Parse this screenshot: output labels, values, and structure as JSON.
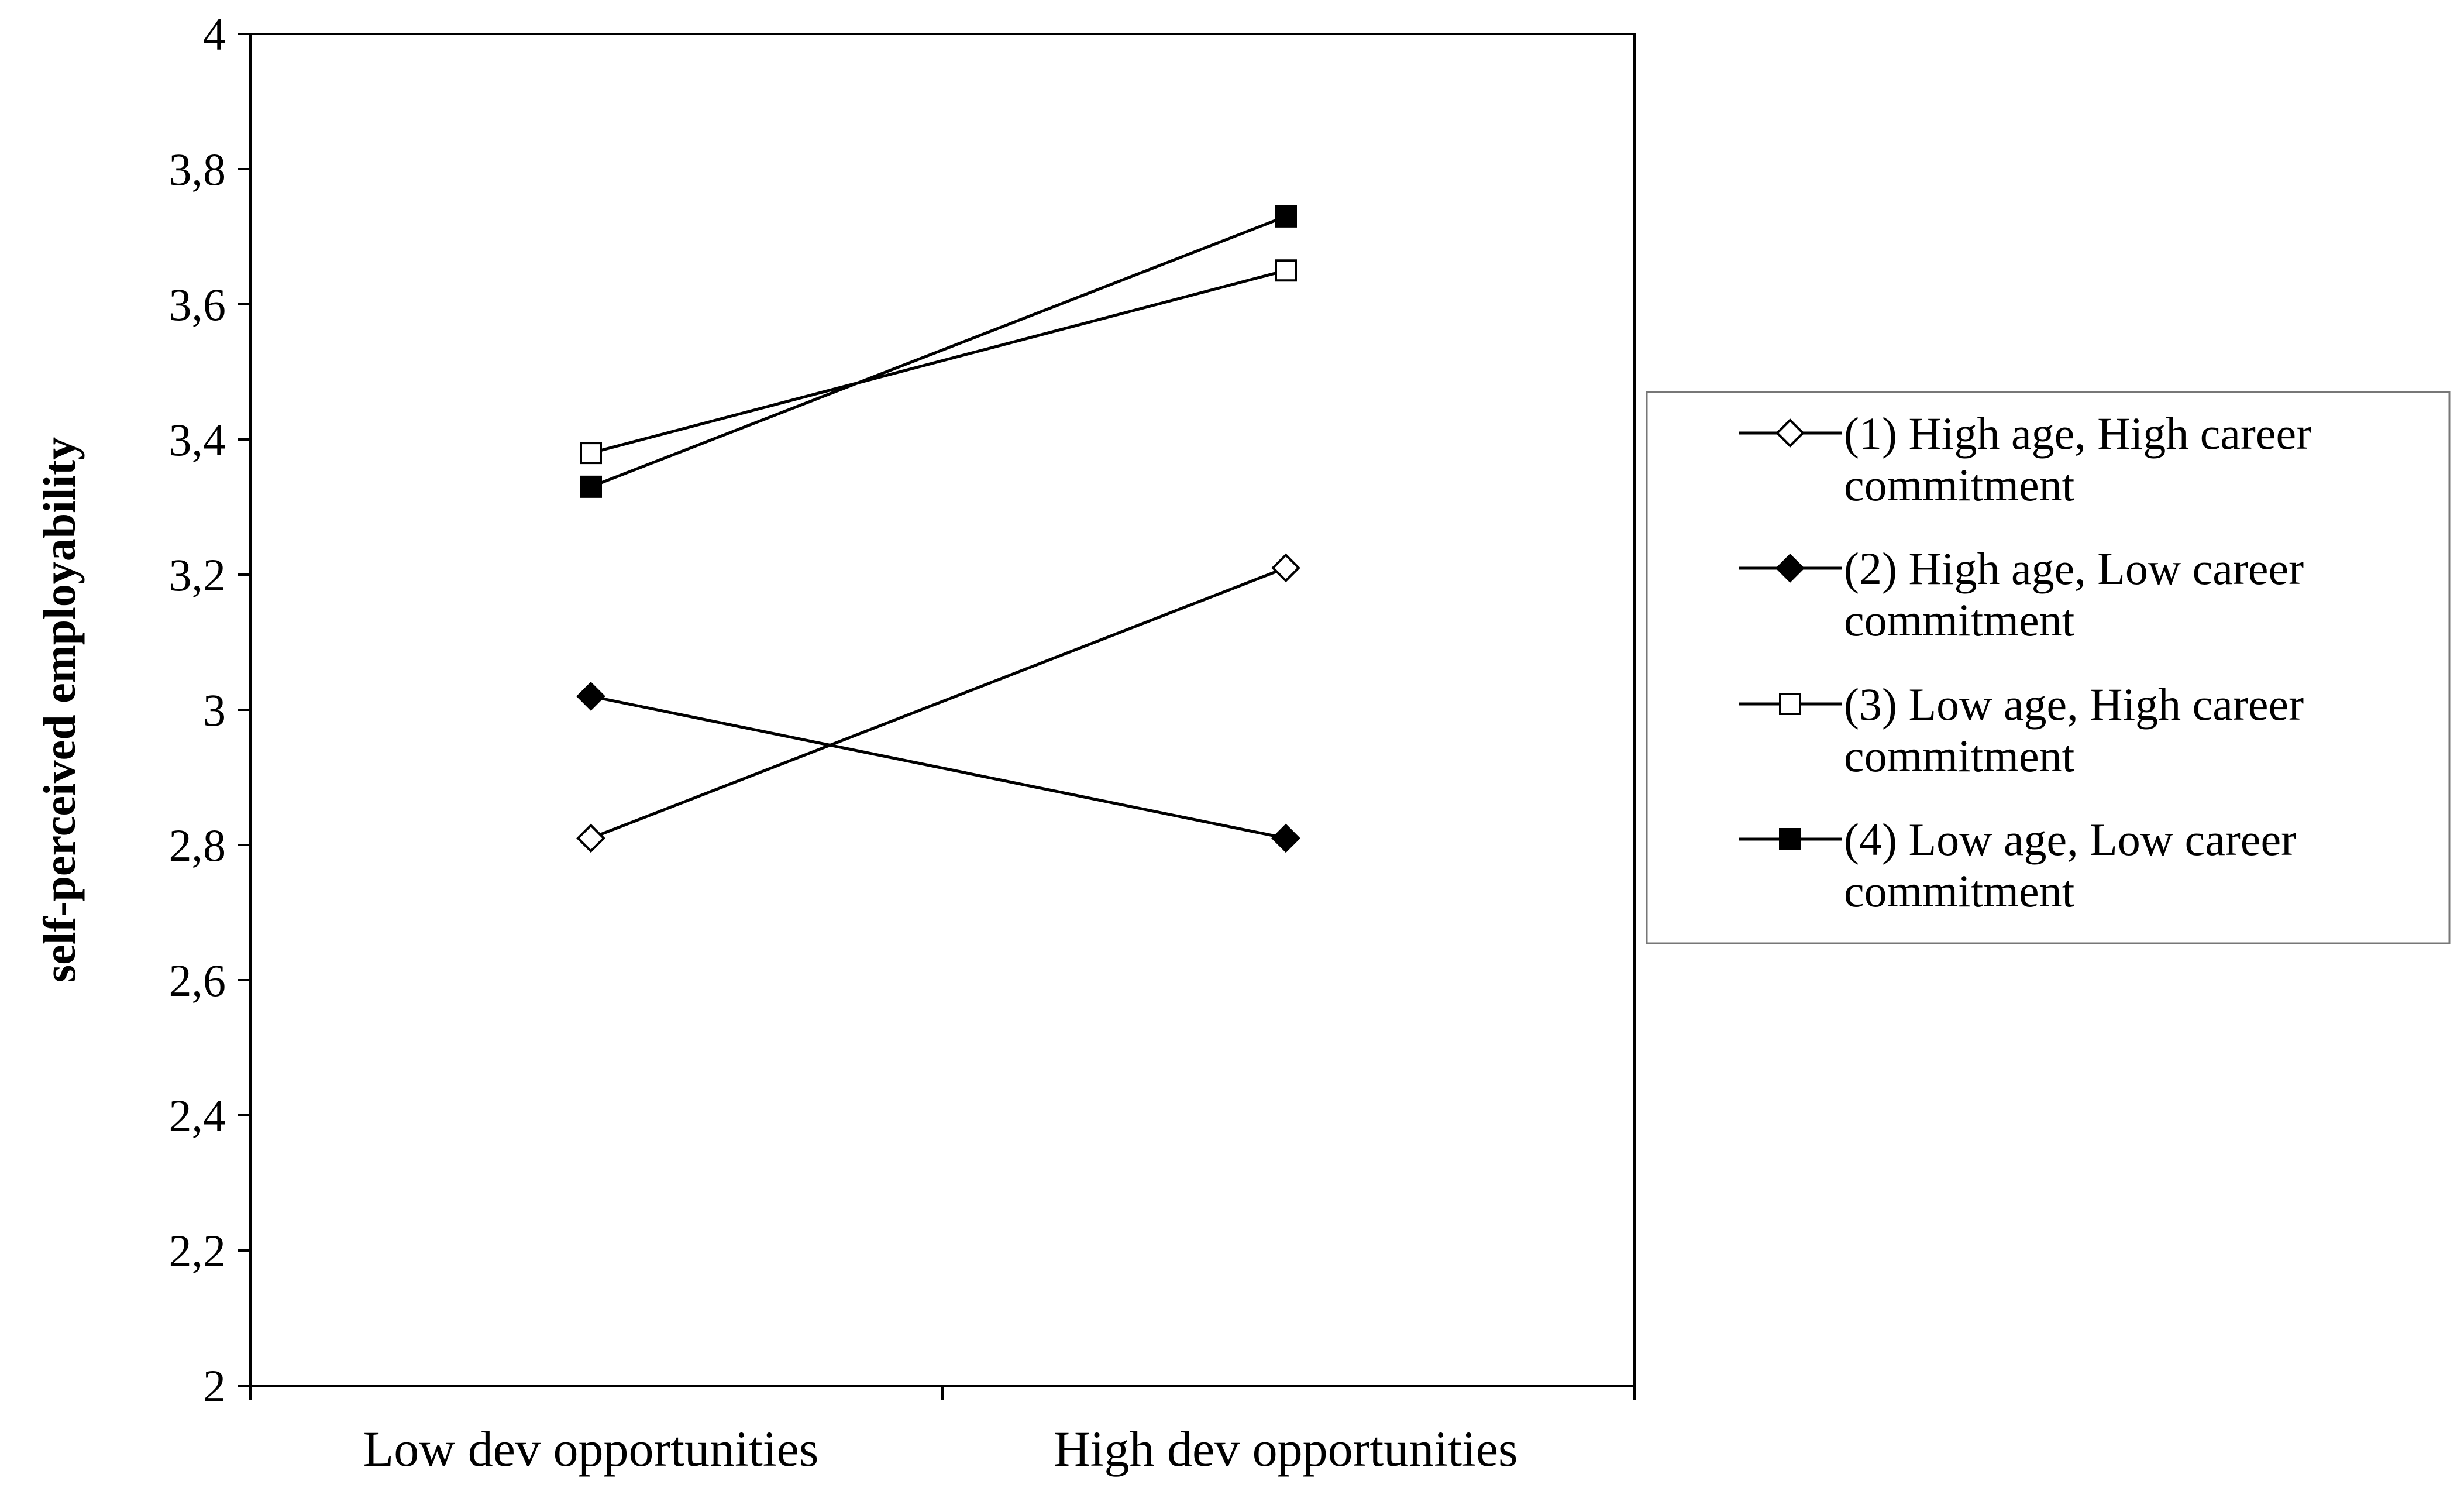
{
  "chart_data": {
    "type": "line",
    "title": "",
    "xlabel": "",
    "ylabel": "self-perceived employability",
    "categories": [
      "Low dev opportunities",
      "High dev opportunities"
    ],
    "ylim": [
      2,
      4
    ],
    "yticks": [
      2,
      2.2,
      2.4,
      2.6,
      2.8,
      3,
      3.2,
      3.4,
      3.6,
      3.8,
      4
    ],
    "ytick_labels": [
      "2",
      "2,2",
      "2,4",
      "2,6",
      "2,8",
      "3",
      "3,2",
      "3,4",
      "3,6",
      "3,8",
      "4"
    ],
    "grid": false,
    "legend_position": "right",
    "series": [
      {
        "name_line1": "(1) High age, High career",
        "name_line2": "commitment",
        "marker": "diamond-open",
        "values": [
          2.81,
          3.21
        ]
      },
      {
        "name_line1": "(2) High age, Low career",
        "name_line2": "commitment",
        "marker": "diamond-filled",
        "values": [
          3.02,
          2.81
        ]
      },
      {
        "name_line1": "(3) Low age, High career",
        "name_line2": "commitment",
        "marker": "square-open",
        "values": [
          3.38,
          3.65
        ]
      },
      {
        "name_line1": "(4) Low age, Low career",
        "name_line2": "commitment",
        "marker": "square-filled",
        "values": [
          3.33,
          3.73
        ]
      }
    ],
    "colors": {
      "line": "#000000",
      "background": "#ffffff"
    }
  }
}
